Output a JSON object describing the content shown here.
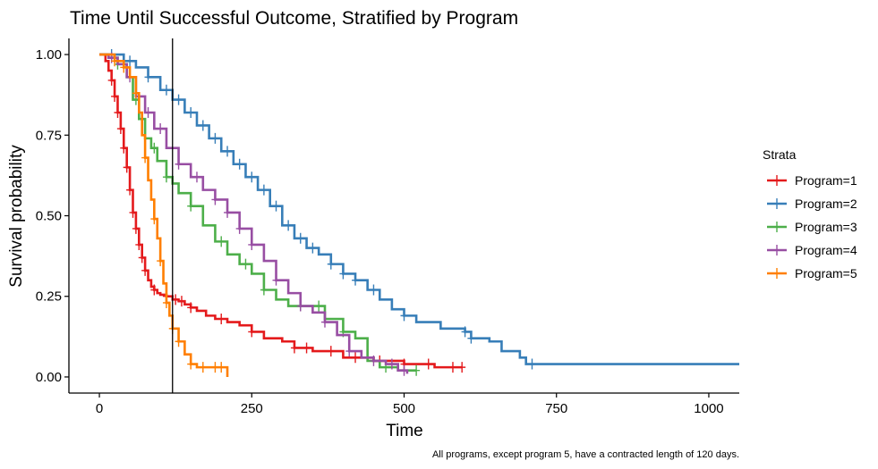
{
  "chart_data": {
    "type": "line",
    "title": "Time Until Successful Outcome, Stratified by Program",
    "xlabel": "Time",
    "ylabel": "Survival probability",
    "caption": "All programs, except program 5, have a contracted length of 120 days.",
    "xlim": [
      -50,
      1050
    ],
    "ylim": [
      -0.05,
      1.05
    ],
    "xticks": [
      0,
      250,
      500,
      750,
      1000
    ],
    "yticks": [
      0.0,
      0.25,
      0.5,
      0.75,
      1.0
    ],
    "ytick_labels": [
      "0.00",
      "0.25",
      "0.50",
      "0.75",
      "1.00"
    ],
    "vline_x": 120,
    "legend_title": "Strata",
    "legend_position": "right",
    "grid": false,
    "series": [
      {
        "name": "Program=1",
        "color": "#E41A1C",
        "x": [
          0,
          10,
          15,
          20,
          25,
          30,
          35,
          40,
          45,
          50,
          55,
          60,
          65,
          70,
          75,
          80,
          85,
          90,
          95,
          100,
          110,
          120,
          130,
          140,
          150,
          160,
          175,
          190,
          210,
          230,
          250,
          270,
          300,
          320,
          350,
          400,
          450,
          500,
          550,
          595
        ],
        "y": [
          1.0,
          0.98,
          0.95,
          0.92,
          0.87,
          0.82,
          0.77,
          0.71,
          0.65,
          0.58,
          0.51,
          0.46,
          0.41,
          0.37,
          0.33,
          0.3,
          0.28,
          0.27,
          0.26,
          0.255,
          0.25,
          0.24,
          0.235,
          0.225,
          0.215,
          0.205,
          0.19,
          0.18,
          0.17,
          0.16,
          0.14,
          0.12,
          0.11,
          0.09,
          0.08,
          0.06,
          0.05,
          0.04,
          0.03,
          0.03
        ],
        "censor_x": [
          20,
          25,
          30,
          35,
          40,
          45,
          50,
          55,
          60,
          65,
          70,
          75,
          90,
          110,
          125,
          135,
          150,
          200,
          250,
          320,
          340,
          380,
          420,
          460,
          500,
          540,
          580,
          595
        ]
      },
      {
        "name": "Program=2",
        "color": "#377EB8",
        "x": [
          0,
          20,
          40,
          60,
          80,
          100,
          120,
          140,
          160,
          180,
          200,
          220,
          240,
          260,
          280,
          300,
          320,
          340,
          360,
          380,
          400,
          420,
          440,
          460,
          480,
          500,
          520,
          560,
          600,
          610,
          640,
          660,
          690,
          700,
          1050
        ],
        "y": [
          1.0,
          1.0,
          0.98,
          0.96,
          0.93,
          0.89,
          0.86,
          0.82,
          0.78,
          0.74,
          0.7,
          0.66,
          0.62,
          0.58,
          0.53,
          0.47,
          0.43,
          0.4,
          0.38,
          0.35,
          0.32,
          0.3,
          0.27,
          0.24,
          0.21,
          0.19,
          0.17,
          0.15,
          0.14,
          0.12,
          0.11,
          0.08,
          0.06,
          0.04,
          0.04
        ],
        "censor_x": [
          20,
          50,
          80,
          110,
          130,
          150,
          170,
          190,
          210,
          230,
          250,
          270,
          290,
          310,
          330,
          350,
          380,
          400,
          420,
          450,
          500,
          600,
          610,
          710
        ]
      },
      {
        "name": "Program=3",
        "color": "#4DAF4A",
        "x": [
          0,
          15,
          30,
          45,
          55,
          65,
          75,
          85,
          95,
          110,
          120,
          130,
          150,
          170,
          190,
          210,
          230,
          250,
          270,
          290,
          310,
          340,
          370,
          400,
          420,
          440,
          460,
          490,
          520
        ],
        "y": [
          1.0,
          0.99,
          0.97,
          0.93,
          0.86,
          0.8,
          0.74,
          0.71,
          0.67,
          0.62,
          0.6,
          0.57,
          0.53,
          0.47,
          0.42,
          0.38,
          0.35,
          0.32,
          0.27,
          0.24,
          0.22,
          0.22,
          0.18,
          0.14,
          0.12,
          0.05,
          0.03,
          0.02,
          0.02
        ],
        "censor_x": [
          30,
          60,
          90,
          110,
          150,
          200,
          240,
          270,
          330,
          360,
          400,
          470,
          520
        ]
      },
      {
        "name": "Program=4",
        "color": "#984EA3",
        "x": [
          0,
          15,
          30,
          45,
          60,
          75,
          90,
          110,
          130,
          150,
          170,
          190,
          210,
          230,
          250,
          270,
          290,
          310,
          330,
          350,
          370,
          390,
          410,
          430,
          450,
          470,
          490,
          505
        ],
        "y": [
          1.0,
          0.99,
          0.97,
          0.93,
          0.87,
          0.82,
          0.77,
          0.71,
          0.66,
          0.62,
          0.58,
          0.55,
          0.51,
          0.46,
          0.41,
          0.36,
          0.3,
          0.26,
          0.22,
          0.2,
          0.17,
          0.13,
          0.08,
          0.06,
          0.05,
          0.04,
          0.02,
          0.01
        ],
        "censor_x": [
          20,
          50,
          80,
          100,
          130,
          160,
          190,
          210,
          230,
          250,
          290,
          330,
          370,
          410,
          450,
          480,
          500
        ]
      },
      {
        "name": "Program=5",
        "color": "#FF7F00",
        "x": [
          0,
          25,
          40,
          50,
          60,
          65,
          70,
          75,
          80,
          85,
          90,
          95,
          100,
          105,
          110,
          115,
          120,
          125,
          130,
          140,
          150,
          160,
          180,
          200,
          210
        ],
        "y": [
          1.0,
          0.98,
          0.96,
          0.93,
          0.88,
          0.82,
          0.75,
          0.68,
          0.61,
          0.55,
          0.49,
          0.43,
          0.36,
          0.29,
          0.23,
          0.19,
          0.15,
          0.15,
          0.11,
          0.07,
          0.04,
          0.03,
          0.03,
          0.03,
          0.0
        ],
        "censor_x": [
          25,
          40,
          60,
          75,
          90,
          100,
          110,
          120,
          130,
          150,
          170,
          190,
          200
        ]
      }
    ]
  }
}
